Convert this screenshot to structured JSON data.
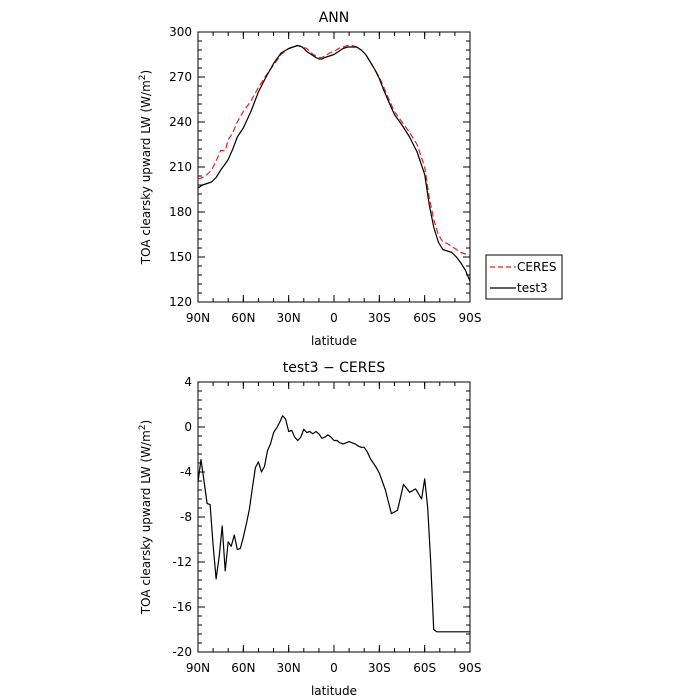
{
  "chart_data": [
    {
      "type": "line",
      "title": "ANN",
      "xlabel": "latitude",
      "ylabel": "TOA clearsky upward LW (W/m²)",
      "ylabel_parts": {
        "main": "TOA clearsky upward LW (W/m",
        "sup": "2",
        "end": ")"
      },
      "xlim": [
        90,
        -90
      ],
      "ylim": [
        120,
        300
      ],
      "xticks": [
        90,
        60,
        30,
        0,
        -30,
        -60,
        -90
      ],
      "xtick_labels": [
        "90N",
        "60N",
        "30N",
        "0",
        "30S",
        "60S",
        "90S"
      ],
      "yticks": [
        120,
        150,
        180,
        210,
        240,
        270,
        300
      ],
      "ytick_labels": [
        "120",
        "150",
        "180",
        "210",
        "240",
        "270",
        "300"
      ],
      "grid": false,
      "legend_position": "right",
      "series": [
        {
          "name": "CERES",
          "color": "#e8231e",
          "dash": "dashed",
          "x": [
            90,
            87,
            84,
            81,
            78,
            75,
            72,
            70,
            67,
            64,
            60,
            55,
            50,
            45,
            40,
            35,
            30,
            27,
            24,
            21,
            18,
            15,
            12,
            10,
            8,
            6,
            3,
            0,
            -3,
            -6,
            -9,
            -12,
            -15,
            -18,
            -21,
            -24,
            -27,
            -30,
            -33,
            -36,
            -40,
            -45,
            -50,
            -55,
            -60,
            -63,
            -66,
            -69,
            -72,
            -75,
            -78,
            -81,
            -84,
            -87,
            -90
          ],
          "y": [
            202,
            203,
            205,
            208,
            214,
            221,
            221,
            228,
            233,
            240,
            247,
            254,
            263,
            271,
            278,
            285,
            289,
            290,
            291,
            290,
            289,
            286,
            284,
            283,
            283,
            284,
            286,
            287,
            289,
            290,
            291,
            291,
            290,
            288,
            285,
            280,
            275,
            270,
            263,
            256,
            247,
            240,
            233,
            225,
            210,
            190,
            175,
            165,
            160,
            159,
            157,
            155,
            153,
            152,
            151
          ]
        },
        {
          "name": "test3",
          "color": "#000000",
          "dash": "solid",
          "x": [
            90,
            87,
            84,
            81,
            78,
            75,
            72,
            70,
            67,
            64,
            60,
            55,
            50,
            45,
            40,
            35,
            30,
            27,
            24,
            21,
            18,
            15,
            12,
            10,
            8,
            6,
            3,
            0,
            -3,
            -6,
            -9,
            -12,
            -15,
            -18,
            -21,
            -24,
            -27,
            -30,
            -33,
            -36,
            -40,
            -45,
            -50,
            -55,
            -60,
            -63,
            -66,
            -69,
            -72,
            -75,
            -78,
            -81,
            -84,
            -87,
            -90
          ],
          "y": [
            196,
            198,
            199,
            200,
            203,
            208,
            212,
            215,
            222,
            230,
            236,
            247,
            260,
            270,
            279,
            286,
            289,
            290,
            291,
            290,
            287,
            285,
            283,
            282,
            282,
            283,
            284,
            285,
            287,
            289,
            290,
            290,
            290,
            288,
            285,
            280,
            275,
            269,
            261,
            254,
            245,
            238,
            230,
            220,
            205,
            185,
            170,
            160,
            155,
            154,
            153,
            150,
            146,
            141,
            134
          ]
        }
      ]
    },
    {
      "type": "line",
      "title": "test3 − CERES",
      "xlabel": "latitude",
      "ylabel": "TOA clearsky upward LW (W/m²)",
      "ylabel_parts": {
        "main": "TOA clearsky upward LW (W/m",
        "sup": "2",
        "end": ")"
      },
      "xlim": [
        90,
        -90
      ],
      "ylim": [
        -20,
        4
      ],
      "xticks": [
        90,
        60,
        30,
        0,
        -30,
        -60,
        -90
      ],
      "xtick_labels": [
        "90N",
        "60N",
        "30N",
        "0",
        "30S",
        "60S",
        "90S"
      ],
      "yticks": [
        -20,
        -16,
        -12,
        -8,
        -4,
        0,
        4
      ],
      "ytick_labels": [
        "-20",
        "-16",
        "-12",
        "-8",
        "-4",
        "0",
        "4"
      ],
      "grid": false,
      "series": [
        {
          "color": "#000000",
          "dash": "solid",
          "x": [
            90,
            88,
            86,
            84,
            82,
            80,
            78,
            76,
            74,
            72,
            70,
            68,
            66,
            64,
            62,
            60,
            58,
            56,
            54,
            52,
            50,
            48,
            46,
            44,
            42,
            40,
            38,
            36,
            34,
            32,
            30,
            28,
            26,
            24,
            22,
            20,
            18,
            16,
            14,
            12,
            10,
            8,
            6,
            4,
            2,
            0,
            -2,
            -4,
            -6,
            -8,
            -10,
            -12,
            -14,
            -16,
            -18,
            -20,
            -22,
            -24,
            -26,
            -28,
            -30,
            -34,
            -38,
            -42,
            -46,
            -50,
            -54,
            -58,
            -60,
            -62,
            -64,
            -66,
            -68,
            -70,
            -72,
            -74,
            -76,
            -78,
            -80,
            -82,
            -84,
            -86,
            -88,
            -90
          ],
          "y": [
            -4.9,
            -2.9,
            -4.8,
            -6.8,
            -6.9,
            -10.5,
            -13.5,
            -11.5,
            -8.8,
            -12.8,
            -10.2,
            -10.6,
            -9.6,
            -10.9,
            -10.8,
            -9.8,
            -8.6,
            -7.3,
            -5.4,
            -3.6,
            -3.1,
            -4.0,
            -3.5,
            -2.1,
            -1.5,
            -0.5,
            -0.1,
            0.4,
            1.0,
            0.7,
            -0.4,
            -0.3,
            -0.9,
            -1.2,
            -0.9,
            -0.2,
            -0.5,
            -0.4,
            -0.6,
            -0.4,
            -0.6,
            -1.0,
            -0.9,
            -0.7,
            -0.9,
            -1.2,
            -1.2,
            -1.4,
            -1.5,
            -1.4,
            -1.3,
            -1.4,
            -1.5,
            -1.7,
            -1.8,
            -1.8,
            -2.2,
            -2.8,
            -3.2,
            -3.6,
            -4.1,
            -5.6,
            -7.7,
            -7.4,
            -5.1,
            -5.8,
            -5.5,
            -6.4,
            -4.6,
            -7.2,
            -12.0,
            -18.0,
            -18.2,
            -18.2,
            -18.2,
            -18.2,
            -18.2,
            -18.2,
            -18.2,
            -18.2,
            -18.2,
            -18.2,
            -18.2,
            -18.2
          ]
        }
      ]
    }
  ]
}
